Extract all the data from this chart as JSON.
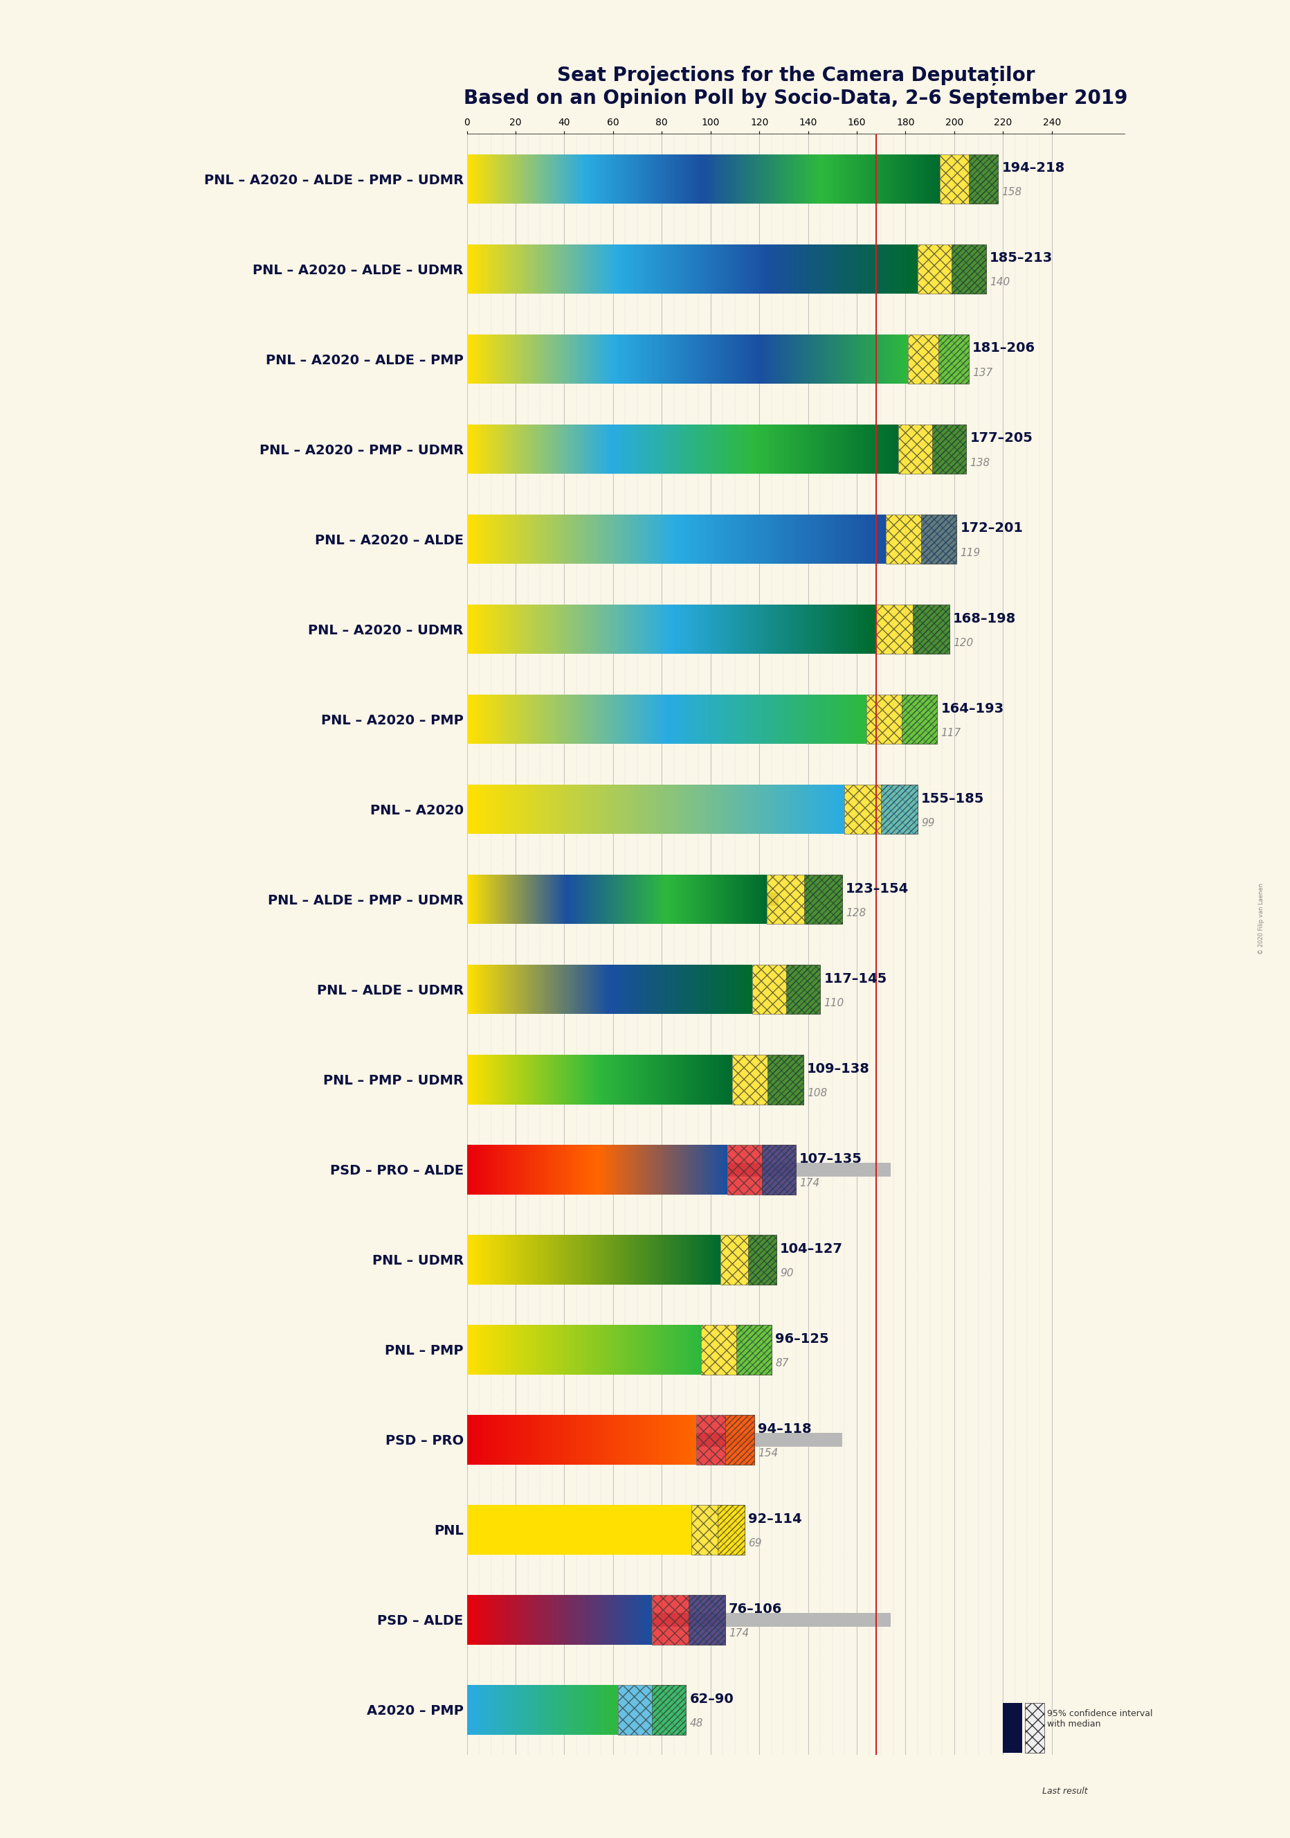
{
  "title": "Seat Projections for the Camera Deputaților",
  "subtitle": "Based on an Opinion Poll by Socio-Data, 2–6 September 2019",
  "copyright": "© 2020 Filip van Laenen",
  "background_color": "#faf6e8",
  "bar_bg_color": "#e8e8e8",
  "coalitions": [
    {
      "label": "PNL – A2020 – ALDE – PMP – UDMR",
      "underline": true,
      "range_lo": 194,
      "range_hi": 218,
      "median": 206,
      "last": 158,
      "colors": [
        "#ffe000",
        "#00bfff",
        "#0055a5",
        "#00c000",
        "#009900"
      ],
      "type": "pnl_group"
    },
    {
      "label": "PNL – A2020 – ALDE – UDMR",
      "underline": false,
      "range_lo": 185,
      "range_hi": 213,
      "median": 199,
      "last": 140,
      "colors": [
        "#ffe000",
        "#00bfff",
        "#0055a5",
        "#009900"
      ],
      "type": "pnl_group"
    },
    {
      "label": "PNL – A2020 – ALDE – PMP",
      "underline": false,
      "range_lo": 181,
      "range_hi": 206,
      "median": 194,
      "last": 137,
      "colors": [
        "#ffe000",
        "#00bfff",
        "#0055a5",
        "#00c000"
      ],
      "type": "pnl_group"
    },
    {
      "label": "PNL – A2020 – PMP – UDMR",
      "underline": false,
      "range_lo": 177,
      "range_hi": 205,
      "median": 191,
      "last": 138,
      "colors": [
        "#ffe000",
        "#00bfff",
        "#00c000",
        "#009900"
      ],
      "type": "pnl_group"
    },
    {
      "label": "PNL – A2020 – ALDE",
      "underline": false,
      "range_lo": 172,
      "range_hi": 201,
      "median": 187,
      "last": 119,
      "colors": [
        "#ffe000",
        "#00bfff",
        "#0055a5"
      ],
      "type": "pnl_group"
    },
    {
      "label": "PNL – A2020 – UDMR",
      "underline": false,
      "range_lo": 168,
      "range_hi": 198,
      "median": 183,
      "last": 120,
      "colors": [
        "#ffe000",
        "#00bfff",
        "#009900"
      ],
      "type": "pnl_group"
    },
    {
      "label": "PNL – A2020 – PMP",
      "underline": false,
      "range_lo": 164,
      "range_hi": 193,
      "median": 179,
      "last": 117,
      "colors": [
        "#ffe000",
        "#00bfff",
        "#00c000"
      ],
      "type": "pnl_group"
    },
    {
      "label": "PNL – A2020",
      "underline": false,
      "range_lo": 155,
      "range_hi": 185,
      "median": 170,
      "last": 99,
      "colors": [
        "#ffe000",
        "#00bfff"
      ],
      "type": "pnl_group"
    },
    {
      "label": "PNL – ALDE – PMP – UDMR",
      "underline": false,
      "range_lo": 123,
      "range_hi": 154,
      "median": 139,
      "last": 128,
      "colors": [
        "#ffe000",
        "#0055a5",
        "#00c000",
        "#009900"
      ],
      "type": "pnl_group2"
    },
    {
      "label": "PNL – ALDE – UDMR",
      "underline": false,
      "range_lo": 117,
      "range_hi": 145,
      "median": 131,
      "last": 110,
      "colors": [
        "#ffe000",
        "#0055a5",
        "#009900"
      ],
      "type": "pnl_group2"
    },
    {
      "label": "PNL – PMP – UDMR",
      "underline": false,
      "range_lo": 109,
      "range_hi": 138,
      "median": 124,
      "last": 108,
      "colors": [
        "#ffe000",
        "#00c000",
        "#009900"
      ],
      "type": "pnl_group2"
    },
    {
      "label": "PSD – PRO – ALDE",
      "underline": false,
      "range_lo": 107,
      "range_hi": 135,
      "median": 121,
      "last": 174,
      "colors": [
        "#e8000a",
        "#ff6600",
        "#0055a5"
      ],
      "type": "psd_group"
    },
    {
      "label": "PNL – UDMR",
      "underline": false,
      "range_lo": 104,
      "range_hi": 127,
      "median": 116,
      "last": 90,
      "colors": [
        "#ffe000",
        "#009900"
      ],
      "type": "pnl_group2"
    },
    {
      "label": "PNL – PMP",
      "underline": false,
      "range_lo": 96,
      "range_hi": 125,
      "median": 111,
      "last": 87,
      "colors": [
        "#ffe000",
        "#00c000"
      ],
      "type": "pnl_group2"
    },
    {
      "label": "PSD – PRO",
      "underline": false,
      "range_lo": 94,
      "range_hi": 118,
      "median": 106,
      "last": 154,
      "colors": [
        "#e8000a",
        "#ff6600"
      ],
      "type": "psd_group"
    },
    {
      "label": "PNL",
      "underline": true,
      "range_lo": 92,
      "range_hi": 114,
      "median": 103,
      "last": 69,
      "colors": [
        "#ffe000"
      ],
      "type": "pnl_only"
    },
    {
      "label": "PSD – ALDE",
      "underline": false,
      "range_lo": 76,
      "range_hi": 106,
      "median": 91,
      "last": 174,
      "colors": [
        "#e8000a",
        "#0055a5"
      ],
      "type": "psd_group"
    },
    {
      "label": "A2020 – PMP",
      "underline": false,
      "range_lo": 62,
      "range_hi": 90,
      "median": 76,
      "last": 48,
      "colors": [
        "#00bfff",
        "#00c000"
      ],
      "type": "a2020_group"
    }
  ],
  "xmin": 0,
  "xmax": 240,
  "majority_line": 168,
  "tick_interval": 20,
  "bar_height": 0.55,
  "bar_gap": 0.35,
  "last_bar_height": 0.15
}
